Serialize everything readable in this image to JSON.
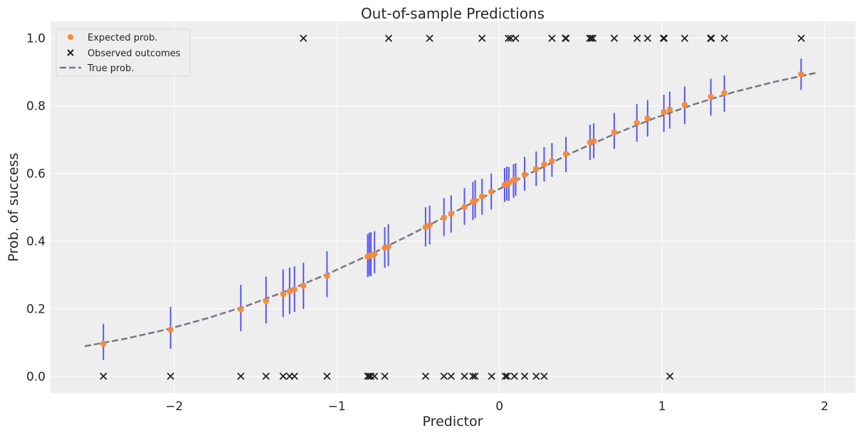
{
  "chart_data": {
    "type": "scatter",
    "title": "Out-of-sample Predictions",
    "xlabel": "Predictor",
    "ylabel": "Prob. of success",
    "xlim": [
      -2.76,
      2.19
    ],
    "ylim": [
      -0.05,
      1.05
    ],
    "xticks": [
      -2,
      -1,
      0,
      1,
      2
    ],
    "xtick_labels": [
      "−2",
      "−1",
      "0",
      "1",
      "2"
    ],
    "yticks": [
      0.0,
      0.2,
      0.4,
      0.6,
      0.8,
      1.0
    ],
    "ytick_labels": [
      "0.0",
      "0.2",
      "0.4",
      "0.6",
      "0.8",
      "1.0"
    ],
    "grid": true,
    "legend_position": "top-left",
    "colors": {
      "expected": "#f58a3a",
      "errorbar": "#3b3bf2",
      "observed": "#222222",
      "true": "#777782",
      "background": "#eeeeee",
      "grid": "#ffffff"
    },
    "series": [
      {
        "name": "Expected prob.",
        "kind": "points-with-intervals",
        "x": [
          -2.435,
          -2.022,
          -1.59,
          -1.435,
          -1.33,
          -1.29,
          -1.26,
          -1.205,
          -1.06,
          -0.81,
          -0.8,
          -0.79,
          -0.768,
          -0.705,
          -0.683,
          -0.454,
          -0.429,
          -0.341,
          -0.297,
          -0.215,
          -0.163,
          -0.149,
          -0.107,
          -0.05,
          0.032,
          0.045,
          0.058,
          0.087,
          0.1,
          0.155,
          0.226,
          0.275,
          0.323,
          0.409,
          0.557,
          0.58,
          0.706,
          0.845,
          0.911,
          1.011,
          1.047,
          1.139,
          1.3,
          1.383,
          1.855
        ],
        "y": [
          0.096,
          0.138,
          0.198,
          0.223,
          0.243,
          0.251,
          0.257,
          0.268,
          0.297,
          0.354,
          0.356,
          0.358,
          0.362,
          0.38,
          0.384,
          0.441,
          0.448,
          0.469,
          0.481,
          0.501,
          0.516,
          0.52,
          0.532,
          0.546,
          0.566,
          0.569,
          0.572,
          0.581,
          0.583,
          0.597,
          0.614,
          0.627,
          0.637,
          0.658,
          0.692,
          0.696,
          0.722,
          0.75,
          0.763,
          0.782,
          0.789,
          0.803,
          0.827,
          0.838,
          0.894
        ],
        "low": [
          0.048,
          0.081,
          0.133,
          0.156,
          0.175,
          0.184,
          0.19,
          0.199,
          0.234,
          0.293,
          0.297,
          0.296,
          0.305,
          0.321,
          0.326,
          0.384,
          0.39,
          0.415,
          0.425,
          0.448,
          0.462,
          0.468,
          0.478,
          0.493,
          0.516,
          0.52,
          0.519,
          0.528,
          0.534,
          0.549,
          0.563,
          0.576,
          0.59,
          0.604,
          0.64,
          0.645,
          0.673,
          0.694,
          0.709,
          0.723,
          0.733,
          0.746,
          0.771,
          0.782,
          0.847
        ],
        "high": [
          0.155,
          0.205,
          0.27,
          0.295,
          0.316,
          0.322,
          0.325,
          0.336,
          0.37,
          0.42,
          0.425,
          0.426,
          0.429,
          0.441,
          0.45,
          0.5,
          0.505,
          0.527,
          0.535,
          0.557,
          0.575,
          0.58,
          0.584,
          0.6,
          0.616,
          0.62,
          0.619,
          0.628,
          0.63,
          0.649,
          0.665,
          0.678,
          0.69,
          0.708,
          0.744,
          0.748,
          0.779,
          0.806,
          0.817,
          0.833,
          0.842,
          0.857,
          0.88,
          0.89,
          0.94
        ]
      },
      {
        "name": "Observed outcomes",
        "kind": "markers-x",
        "x": [
          -2.435,
          -2.022,
          -1.59,
          -1.435,
          -1.33,
          -1.29,
          -1.26,
          -1.06,
          -0.81,
          -0.8,
          -0.79,
          -0.768,
          -0.705,
          -0.454,
          -0.341,
          -0.297,
          -0.215,
          -0.163,
          -0.15,
          -0.048,
          0.036,
          0.047,
          0.092,
          0.155,
          0.226,
          0.275,
          1.048,
          -1.205,
          -0.681,
          -0.429,
          -0.107,
          0.055,
          0.07,
          0.1,
          0.323,
          0.405,
          0.41,
          0.555,
          0.565,
          0.575,
          0.706,
          0.847,
          0.911,
          1.008,
          1.013,
          1.139,
          1.298,
          1.303,
          1.383,
          1.856
        ],
        "y": [
          0,
          0,
          0,
          0,
          0,
          0,
          0,
          0,
          0,
          0,
          0,
          0,
          0,
          0,
          0,
          0,
          0,
          0,
          0,
          0,
          0,
          0,
          0,
          0,
          0,
          0,
          0,
          1,
          1,
          1,
          1,
          1,
          1,
          1,
          1,
          1,
          1,
          1,
          1,
          1,
          1,
          1,
          1,
          1,
          1,
          1,
          1,
          1,
          1,
          1
        ]
      },
      {
        "name": "True prob.",
        "kind": "dashed-line",
        "x": [
          -2.55,
          -2.3,
          -2.05,
          -1.8,
          -1.55,
          -1.3,
          -1.05,
          -0.8,
          -0.55,
          -0.3,
          -0.05,
          0.2,
          0.45,
          0.7,
          0.95,
          1.2,
          1.45,
          1.7,
          1.95
        ],
        "y": [
          0.0887,
          0.111,
          0.138,
          0.171,
          0.209,
          0.254,
          0.304,
          0.359,
          0.418,
          0.48,
          0.542,
          0.603,
          0.662,
          0.715,
          0.763,
          0.805,
          0.842,
          0.872,
          0.898
        ]
      }
    ]
  }
}
